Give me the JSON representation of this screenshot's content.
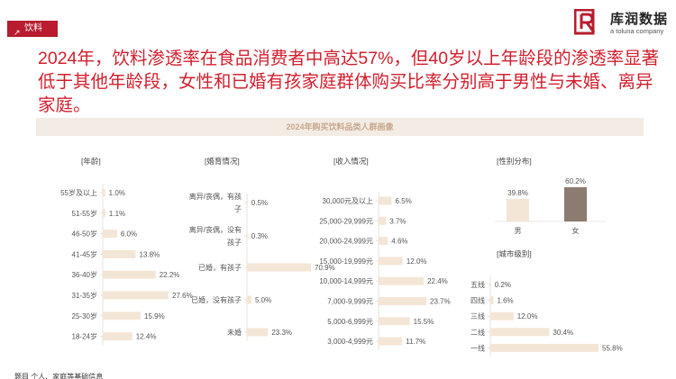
{
  "tag": {
    "label": "饮料"
  },
  "logo": {
    "name": "库润数据",
    "sub": "a toluna company"
  },
  "headline": "2024年，饮料渗透率在食品消费者中高达57%，但40岁以上年龄段的渗透率显著低于其他年龄段，女性和已婚有孩家庭群体购买比率分别高于男性与未婚、离异家庭。",
  "section_title": "2024年购买饮料品类人群画像",
  "footer": "题目 个人、家庭等基础信息",
  "colors": {
    "bar": "#f4e6d6",
    "bar_dark": "#8c7b70",
    "accent": "#d11f2d",
    "brand": "#b81c2e"
  },
  "chart_data": [
    {
      "type": "bar",
      "title": "[年龄]",
      "orientation": "horizontal",
      "categories": [
        "55岁及以上",
        "51-55岁",
        "46-50岁",
        "41-45岁",
        "36-40岁",
        "31-35岁",
        "25-30岁",
        "18-24岁"
      ],
      "values": [
        1.0,
        1.1,
        6.0,
        13.8,
        22.2,
        27.6,
        15.9,
        12.4
      ],
      "labels": [
        "1.0%",
        "1.1%",
        "6.0%",
        "13.8%",
        "22.2%",
        "27.6%",
        "15.9%",
        "12.4%"
      ]
    },
    {
      "type": "bar",
      "title": "[婚育情况]",
      "orientation": "horizontal",
      "categories": [
        [
          "离异/丧偶，有孩",
          "子"
        ],
        [
          "离异/丧偶，没有",
          "孩子"
        ],
        [
          "已婚，有孩子"
        ],
        [
          "已婚，没有孩子"
        ],
        [
          "未婚"
        ]
      ],
      "values": [
        0.5,
        0.3,
        70.9,
        5.0,
        23.3
      ],
      "labels": [
        "0.5%",
        "0.3%",
        "70.9%",
        "5.0%",
        "23.3%"
      ]
    },
    {
      "type": "bar",
      "title": "[收入情况]",
      "orientation": "horizontal",
      "categories": [
        "30,000元及以上",
        "25,000-29,999元",
        "20,000-24,999元",
        "15,000-19,999元",
        "10,000-14,999元",
        "7,000-9,999元",
        "5,000-6,999元",
        "3,000-4,999元"
      ],
      "values": [
        6.5,
        3.7,
        4.6,
        12.0,
        22.4,
        23.7,
        15.5,
        11.7
      ],
      "labels": [
        "6.5%",
        "3.7%",
        "4.6%",
        "12.0%",
        "22.4%",
        "23.7%",
        "15.5%",
        "11.7%"
      ]
    },
    {
      "type": "bar",
      "title": "[性别分布]",
      "orientation": "vertical",
      "categories": [
        "男",
        "女"
      ],
      "values": [
        39.8,
        60.2
      ],
      "labels": [
        "39.8%",
        "60.2%"
      ]
    },
    {
      "type": "bar",
      "title": "[城市级别]",
      "orientation": "horizontal",
      "categories": [
        "五线",
        "四线",
        "三线",
        "二线",
        "一线"
      ],
      "values": [
        0.2,
        1.6,
        12.0,
        30.4,
        55.8
      ],
      "labels": [
        "0.2%",
        "1.6%",
        "12.0%",
        "30.4%",
        "55.8%"
      ]
    }
  ]
}
